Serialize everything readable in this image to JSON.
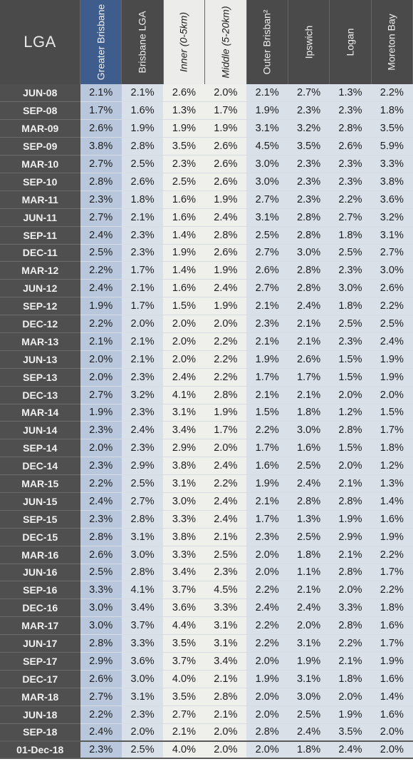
{
  "table": {
    "headers": {
      "lga": "LGA",
      "columns": [
        "Greater Brisbane",
        "Brisbane LGA",
        "Inner (0-5km)",
        "Middle (5-20km)",
        "Outer Brisban²",
        "Ipswich",
        "Logan",
        "Moreton Bay"
      ]
    },
    "rows": [
      {
        "label": "JUN-08",
        "values": [
          "2.1%",
          "2.1%",
          "2.6%",
          "2.0%",
          "2.1%",
          "2.7%",
          "1.3%",
          "2.2%"
        ]
      },
      {
        "label": "SEP-08",
        "values": [
          "1.7%",
          "1.6%",
          "1.3%",
          "1.7%",
          "1.9%",
          "2.3%",
          "2.3%",
          "1.8%"
        ]
      },
      {
        "label": "MAR-09",
        "values": [
          "2.6%",
          "1.9%",
          "1.9%",
          "1.9%",
          "3.1%",
          "3.2%",
          "2.8%",
          "3.5%"
        ]
      },
      {
        "label": "SEP-09",
        "values": [
          "3.8%",
          "2.8%",
          "3.5%",
          "2.6%",
          "4.5%",
          "3.5%",
          "2.6%",
          "5.9%"
        ]
      },
      {
        "label": "MAR-10",
        "values": [
          "2.7%",
          "2.5%",
          "2.3%",
          "2.6%",
          "3.0%",
          "2.3%",
          "2.3%",
          "3.3%"
        ]
      },
      {
        "label": "SEP-10",
        "values": [
          "2.8%",
          "2.6%",
          "2.5%",
          "2.6%",
          "3.0%",
          "2.3%",
          "2.3%",
          "3.8%"
        ]
      },
      {
        "label": "MAR-11",
        "values": [
          "2.3%",
          "1.8%",
          "1.6%",
          "1.9%",
          "2.7%",
          "2.3%",
          "2.2%",
          "3.6%"
        ]
      },
      {
        "label": "JUN-11",
        "values": [
          "2.7%",
          "2.1%",
          "1.6%",
          "2.4%",
          "3.1%",
          "2.8%",
          "2.7%",
          "3.2%"
        ]
      },
      {
        "label": "SEP-11",
        "values": [
          "2.4%",
          "2.3%",
          "1.4%",
          "2.8%",
          "2.5%",
          "2.8%",
          "1.8%",
          "3.1%"
        ]
      },
      {
        "label": "DEC-11",
        "values": [
          "2.5%",
          "2.3%",
          "1.9%",
          "2.6%",
          "2.7%",
          "3.0%",
          "2.5%",
          "2.7%"
        ]
      },
      {
        "label": "MAR-12",
        "values": [
          "2.2%",
          "1.7%",
          "1.4%",
          "1.9%",
          "2.6%",
          "2.8%",
          "2.3%",
          "3.0%"
        ]
      },
      {
        "label": "JUN-12",
        "values": [
          "2.4%",
          "2.1%",
          "1.6%",
          "2.4%",
          "2.7%",
          "2.8%",
          "3.0%",
          "2.6%"
        ]
      },
      {
        "label": "SEP-12",
        "values": [
          "1.9%",
          "1.7%",
          "1.5%",
          "1.9%",
          "2.1%",
          "2.4%",
          "1.8%",
          "2.2%"
        ]
      },
      {
        "label": "DEC-12",
        "values": [
          "2.2%",
          "2.0%",
          "2.0%",
          "2.0%",
          "2.3%",
          "2.1%",
          "2.5%",
          "2.5%"
        ]
      },
      {
        "label": "MAR-13",
        "values": [
          "2.1%",
          "2.1%",
          "2.0%",
          "2.2%",
          "2.1%",
          "2.1%",
          "2.3%",
          "2.4%"
        ]
      },
      {
        "label": "JUN-13",
        "values": [
          "2.0%",
          "2.1%",
          "2.0%",
          "2.2%",
          "1.9%",
          "2.6%",
          "1.5%",
          "1.9%"
        ]
      },
      {
        "label": "SEP-13",
        "values": [
          "2.0%",
          "2.3%",
          "2.4%",
          "2.2%",
          "1.7%",
          "1.7%",
          "1.5%",
          "1.9%"
        ]
      },
      {
        "label": "DEC-13",
        "values": [
          "2.7%",
          "3.2%",
          "4.1%",
          "2.8%",
          "2.1%",
          "2.1%",
          "2.0%",
          "2.0%"
        ]
      },
      {
        "label": "MAR-14",
        "values": [
          "1.9%",
          "2.3%",
          "3.1%",
          "1.9%",
          "1.5%",
          "1.8%",
          "1.2%",
          "1.5%"
        ]
      },
      {
        "label": "JUN-14",
        "values": [
          "2.3%",
          "2.4%",
          "3.4%",
          "1.7%",
          "2.2%",
          "3.0%",
          "2.8%",
          "1.7%"
        ]
      },
      {
        "label": "SEP-14",
        "values": [
          "2.0%",
          "2.3%",
          "2.9%",
          "2.0%",
          "1.7%",
          "1.6%",
          "1.5%",
          "1.8%"
        ]
      },
      {
        "label": "DEC-14",
        "values": [
          "2.3%",
          "2.9%",
          "3.8%",
          "2.4%",
          "1.6%",
          "2.5%",
          "2.0%",
          "1.2%"
        ]
      },
      {
        "label": "MAR-15",
        "values": [
          "2.2%",
          "2.5%",
          "3.1%",
          "2.2%",
          "1.9%",
          "2.4%",
          "2.1%",
          "1.3%"
        ]
      },
      {
        "label": "JUN-15",
        "values": [
          "2.4%",
          "2.7%",
          "3.0%",
          "2.4%",
          "2.1%",
          "2.8%",
          "2.8%",
          "1.4%"
        ]
      },
      {
        "label": "SEP-15",
        "values": [
          "2.3%",
          "2.8%",
          "3.3%",
          "2.4%",
          "1.7%",
          "1.3%",
          "1.9%",
          "1.6%"
        ]
      },
      {
        "label": "DEC-15",
        "values": [
          "2.8%",
          "3.1%",
          "3.8%",
          "2.1%",
          "2.3%",
          "2.5%",
          "2.9%",
          "1.9%"
        ]
      },
      {
        "label": "MAR-16",
        "values": [
          "2.6%",
          "3.0%",
          "3.3%",
          "2.5%",
          "2.0%",
          "1.8%",
          "2.1%",
          "2.2%"
        ]
      },
      {
        "label": "JUN-16",
        "values": [
          "2.5%",
          "2.8%",
          "3.4%",
          "2.3%",
          "2.0%",
          "1.1%",
          "2.8%",
          "1.7%"
        ]
      },
      {
        "label": "SEP-16",
        "values": [
          "3.3%",
          "4.1%",
          "3.7%",
          "4.5%",
          "2.2%",
          "2.1%",
          "2.0%",
          "2.2%"
        ]
      },
      {
        "label": "DEC-16",
        "values": [
          "3.0%",
          "3.4%",
          "3.6%",
          "3.3%",
          "2.4%",
          "2.4%",
          "3.3%",
          "1.8%"
        ]
      },
      {
        "label": "MAR-17",
        "values": [
          "3.0%",
          "3.7%",
          "4.4%",
          "3.1%",
          "2.2%",
          "2.0%",
          "2.8%",
          "1.6%"
        ]
      },
      {
        "label": "JUN-17",
        "values": [
          "2.8%",
          "3.3%",
          "3.5%",
          "3.1%",
          "2.2%",
          "3.1%",
          "2.2%",
          "1.7%"
        ]
      },
      {
        "label": "SEP-17",
        "values": [
          "2.9%",
          "3.6%",
          "3.7%",
          "3.4%",
          "2.0%",
          "1.9%",
          "2.1%",
          "1.9%"
        ]
      },
      {
        "label": "DEC-17",
        "values": [
          "2.6%",
          "3.0%",
          "4.0%",
          "2.1%",
          "1.9%",
          "3.1%",
          "1.8%",
          "1.6%"
        ]
      },
      {
        "label": "MAR-18",
        "values": [
          "2.7%",
          "3.1%",
          "3.5%",
          "2.8%",
          "2.0%",
          "3.0%",
          "2.0%",
          "1.4%"
        ]
      },
      {
        "label": "JUN-18",
        "values": [
          "2.2%",
          "2.3%",
          "2.7%",
          "2.1%",
          "2.0%",
          "2.5%",
          "1.9%",
          "1.6%"
        ]
      },
      {
        "label": "SEP-18",
        "values": [
          "2.4%",
          "2.0%",
          "2.1%",
          "2.0%",
          "2.8%",
          "2.4%",
          "3.5%",
          "2.0%"
        ]
      }
    ],
    "footer": {
      "label": "01-Dec-18",
      "values": [
        "2.3%",
        "2.5%",
        "4.0%",
        "2.0%",
        "2.0%",
        "1.8%",
        "2.4%",
        "2.0%"
      ]
    }
  }
}
